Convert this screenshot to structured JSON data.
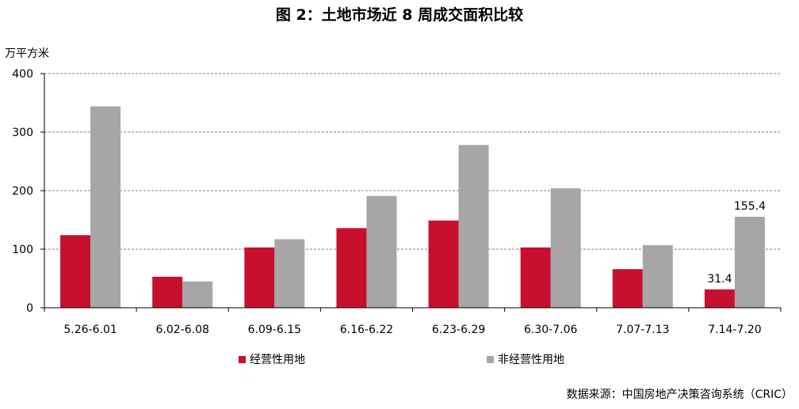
{
  "page": {
    "title": "图 2：土地市场近 8 周成交面积比较",
    "unit": "万平方米",
    "source": "数据来源：中国房地产决策咨询系统（CRIC）"
  },
  "colors": {
    "series_1": "#C8102E",
    "series_2": "#A6A6A6",
    "grid": "#7F7F7F",
    "axis": "#000000"
  },
  "chart_data": {
    "type": "bar",
    "title": "图 2：土地市场近 8 周成交面积比较",
    "ylabel": "万平方米",
    "ylim": [
      0,
      400
    ],
    "yticks": [
      0,
      100,
      200,
      300,
      400
    ],
    "grid": "horizontal dashed",
    "legend_position": "bottom",
    "categories": [
      "5.26-6.01",
      "6.02-6.08",
      "6.09-6.15",
      "6.16-6.22",
      "6.23-6.29",
      "6.30-7.06",
      "7.07-7.13",
      "7.14-7.20"
    ],
    "series": [
      {
        "name": "经营性用地",
        "color": "#C8102E",
        "values": [
          124,
          53,
          103,
          136,
          149,
          103,
          66,
          31.4
        ]
      },
      {
        "name": "非经营性用地",
        "color": "#A6A6A6",
        "values": [
          344,
          45,
          117,
          191,
          278,
          204,
          107,
          155.4
        ]
      }
    ],
    "data_labels": [
      {
        "series": 0,
        "index": 7,
        "text": "31.4"
      },
      {
        "series": 1,
        "index": 7,
        "text": "155.4"
      }
    ]
  }
}
